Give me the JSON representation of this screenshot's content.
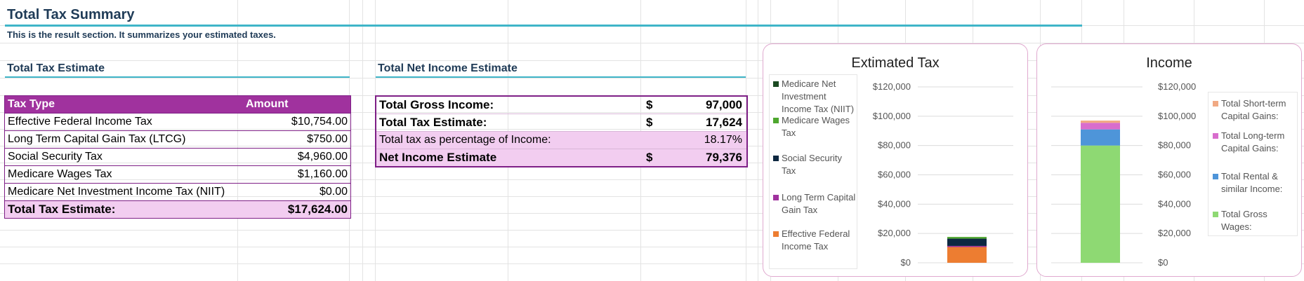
{
  "summary": {
    "title": "Total Tax Summary",
    "subtitle": "This is the result section. It summarizes your estimated taxes."
  },
  "tax_estimate": {
    "section_title": "Total Tax Estimate",
    "header": {
      "type": "Tax Type",
      "amount": "Amount"
    },
    "rows": [
      {
        "type": "Effective Federal Income Tax",
        "amount": "$10,754.00"
      },
      {
        "type": "Long Term Capital Gain Tax (LTCG)",
        "amount": "$750.00"
      },
      {
        "type": "Social Security Tax",
        "amount": "$4,960.00"
      },
      {
        "type": "Medicare Wages Tax",
        "amount": "$1,160.00"
      },
      {
        "type": "Medicare Net Investment Income Tax (NIIT)",
        "amount": "$0.00"
      }
    ],
    "total": {
      "label": "Total Tax Estimate:",
      "amount": "$17,624.00"
    }
  },
  "net_income": {
    "section_title": "Total Net Income Estimate",
    "rows": [
      {
        "label": "Total Gross Income:",
        "currency": "$",
        "value": "97,000"
      },
      {
        "label": "Total Tax Estimate:",
        "currency": "$",
        "value": "17,624"
      },
      {
        "label": "Total tax as percentage of Income:",
        "currency": "",
        "value": "18.17%"
      },
      {
        "label": "Net Income Estimate",
        "currency": "$",
        "value": "79,376"
      }
    ]
  },
  "colors": {
    "header_purple": "#a0329e",
    "pink_fill": "#f2cdf0",
    "teal_rule": "#3fb5c8",
    "title_navy": "#1f3b57"
  },
  "chart_data": [
    {
      "type": "bar",
      "stacked": true,
      "title": "Extimated Tax",
      "ylim": [
        0,
        120000
      ],
      "yticks": [
        "$0",
        "$20,000",
        "$40,000",
        "$60,000",
        "$80,000",
        "$100,000",
        "$120,000"
      ],
      "legend_position": "left",
      "series": [
        {
          "name": "Effective Federal Income Tax",
          "value": 10754,
          "color": "#ed7d31"
        },
        {
          "name": "Long Term Capital Gain Tax (LTCG)",
          "value": 750,
          "color": "#a0329e"
        },
        {
          "name": "Social Security Tax",
          "value": 4960,
          "color": "#0e2841"
        },
        {
          "name": "Medicare Wages Tax",
          "value": 1160,
          "color": "#4ea72e"
        },
        {
          "name": "Medicare Net Investment Income Tax (NIIT)",
          "value": 0,
          "color": "#1b4a22"
        }
      ],
      "legend_order": [
        "Medicare Net Investment Income Tax (NIIT)",
        "Medicare Wages Tax",
        "Social Security Tax",
        "Long Term Capital Gain Tax (LTCG)",
        "Effective Federal Income Tax"
      ]
    },
    {
      "type": "bar",
      "stacked": true,
      "title": "Income",
      "ylim": [
        0,
        120000
      ],
      "yticks": [
        "$0",
        "$20,000",
        "$40,000",
        "$60,000",
        "$80,000",
        "$100,000",
        "$120,000"
      ],
      "legend_position": "right",
      "series": [
        {
          "name": "Total Gross Wages:",
          "value": 80000,
          "color": "#8ed973"
        },
        {
          "name": "Total Rental & similar Income:",
          "value": 11000,
          "color": "#4e95d9"
        },
        {
          "name": "Total Long-term Capital Gains:",
          "value": 4500,
          "color": "#d86dcd"
        },
        {
          "name": "Total Short-term Capital Gains:",
          "value": 1500,
          "color": "#f1a983"
        }
      ],
      "legend_order": [
        "Total Short-term Capital Gains:",
        "Total Long-term Capital Gains:",
        "Total Rental & similar Income:",
        "Total Gross Wages:"
      ]
    }
  ]
}
